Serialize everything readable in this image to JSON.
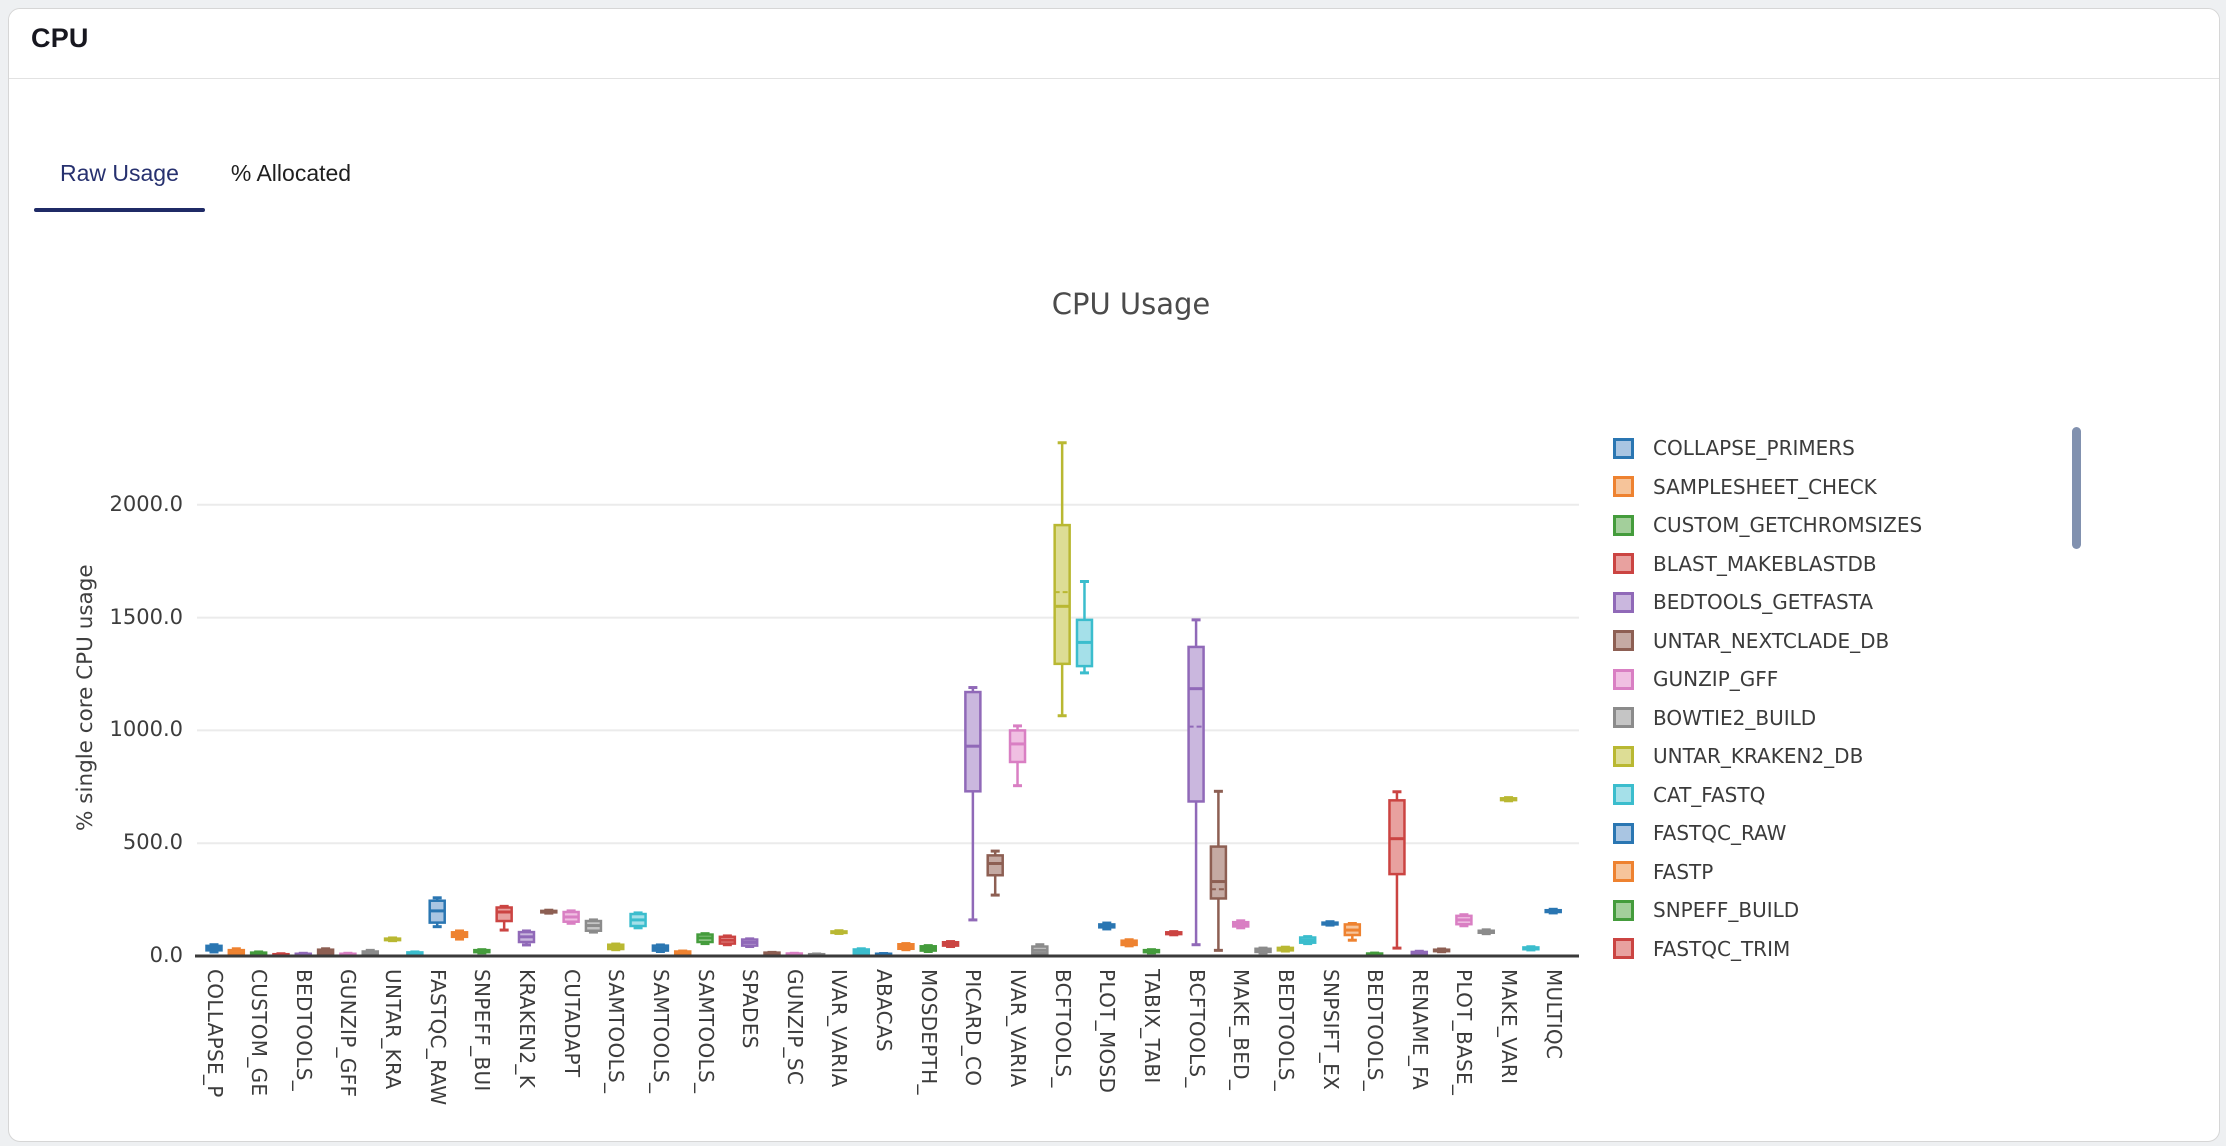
{
  "panel": {
    "title": "CPU"
  },
  "tabs": {
    "raw_label": "Raw Usage",
    "allocated_label": "% Allocated"
  },
  "colors": {
    "active_tab": "#27316f",
    "tab_underline": "#1f2a66",
    "scrollbar": "#8191af",
    "axis_line": "#3a3a3a",
    "gridline": "#ebebeb"
  },
  "chart_data": {
    "type": "boxplot",
    "title": "CPU Usage",
    "ylabel": "% single core CPU usage",
    "yticks": [
      0,
      500,
      1000,
      1500,
      2000
    ],
    "ytick_labels": [
      "0.0",
      "500.0",
      "1000.0",
      "1500.0",
      "2000.0"
    ],
    "ylim": [
      0,
      2350
    ],
    "grid": "horizontal",
    "legend_position": "right",
    "x_tick_labels": [
      "COLLAPSE_P",
      "CUSTOM_GE",
      "BEDTOOLS_",
      "GUNZIP_GFF",
      "UNTAR_KRA",
      "FASTQC_RAW",
      "SNPEFF_BUI",
      "KRAKEN2_K",
      "CUTADAPT",
      "SAMTOOLS_",
      "SAMTOOLS_",
      "SAMTOOLS_",
      "SPADES",
      "GUNZIP_SC",
      "IVAR_VARIA",
      "ABACAS",
      "MOSDEPTH_",
      "PICARD_CO",
      "IVAR_VARIA",
      "BCFTOOLS_",
      "PLOT_MOSD",
      "TABIX_TABI",
      "BCFTOOLS_",
      "MAKE_BED_",
      "BEDTOOLS_",
      "SNPSIFT_EX",
      "BEDTOOLS_",
      "RENAME_FA",
      "PLOT_BASE_",
      "MAKE_VARI",
      "MULTIQC"
    ],
    "palette": [
      [
        "#2a76b2",
        "#a9c5e2"
      ],
      [
        "#ee8230",
        "#f6c49a"
      ],
      [
        "#449c3c",
        "#a3cf9b"
      ],
      [
        "#cb4442",
        "#e8a19f"
      ],
      [
        "#9069b8",
        "#cab7de"
      ],
      [
        "#8d5f53",
        "#c5aaa3"
      ],
      [
        "#d97fc3",
        "#f0bfe2"
      ],
      [
        "#8b8b8b",
        "#c5c5c5"
      ],
      [
        "#b9b832",
        "#dddd95"
      ],
      [
        "#3bbdcd",
        "#a5e0e9"
      ]
    ],
    "boxes": [
      {
        "c": 0,
        "v": [
          18,
          25,
          35,
          45,
          50
        ]
      },
      {
        "c": 1,
        "v": [
          2,
          6,
          15,
          26,
          32
        ]
      },
      {
        "c": 2,
        "v": [
          2,
          5,
          10,
          15,
          18
        ]
      },
      {
        "c": 3,
        "v": [
          0,
          2,
          5,
          8,
          10
        ]
      },
      {
        "c": 4,
        "v": [
          1,
          3,
          6,
          10,
          12
        ]
      },
      {
        "c": 5,
        "v": [
          5,
          12,
          20,
          28,
          32
        ]
      },
      {
        "c": 6,
        "v": [
          0,
          3,
          7,
          10,
          12
        ]
      },
      {
        "c": 7,
        "v": [
          2,
          6,
          12,
          20,
          25
        ]
      },
      {
        "c": 8,
        "v": [
          68,
          71,
          74,
          77,
          80
        ]
      },
      {
        "c": 9,
        "v": [
          5,
          8,
          12,
          16,
          18
        ]
      },
      {
        "c": 0,
        "v": [
          130,
          148,
          200,
          245,
          258
        ]
      },
      {
        "c": 1,
        "v": [
          75,
          85,
          95,
          105,
          111
        ]
      },
      {
        "c": 2,
        "v": [
          14,
          17,
          21,
          26,
          28
        ]
      },
      {
        "c": 3,
        "v": [
          115,
          155,
          195,
          215,
          220
        ]
      },
      {
        "c": 4,
        "v": [
          49,
          62,
          85,
          106,
          111
        ]
      },
      {
        "c": 5,
        "v": [
          190,
          194,
          197,
          200,
          203
        ]
      },
      {
        "c": 6,
        "v": [
          145,
          152,
          173,
          195,
          200
        ]
      },
      {
        "c": 7,
        "v": [
          106,
          112,
          135,
          155,
          160
        ]
      },
      {
        "c": 8,
        "v": [
          28,
          31,
          40,
          50,
          53
        ]
      },
      {
        "c": 9,
        "v": [
          125,
          133,
          160,
          186,
          191
        ]
      },
      {
        "c": 0,
        "v": [
          20,
          24,
          35,
          46,
          49
        ]
      },
      {
        "c": 1,
        "v": [
          8,
          10,
          15,
          20,
          22
        ]
      },
      {
        "c": 2,
        "v": [
          55,
          62,
          80,
          95,
          99
        ]
      },
      {
        "c": 3,
        "v": [
          50,
          55,
          70,
          85,
          89
        ]
      },
      {
        "c": 4,
        "v": [
          42,
          46,
          60,
          73,
          76
        ]
      },
      {
        "c": 5,
        "v": [
          9,
          11,
          13,
          15,
          16
        ]
      },
      {
        "c": 6,
        "v": [
          6,
          7,
          9,
          11,
          12
        ]
      },
      {
        "c": 7,
        "v": [
          4,
          5,
          6,
          8,
          9
        ]
      },
      {
        "c": 8,
        "v": [
          100,
          103,
          106,
          109,
          112
        ]
      },
      {
        "c": 9,
        "v": [
          8,
          10,
          20,
          29,
          32
        ]
      },
      {
        "c": 0,
        "v": [
          5,
          6,
          8,
          10,
          11
        ]
      },
      {
        "c": 1,
        "v": [
          28,
          32,
          42,
          52,
          55
        ]
      },
      {
        "c": 2,
        "v": [
          20,
          24,
          35,
          43,
          46
        ]
      },
      {
        "c": 3,
        "v": [
          42,
          46,
          53,
          61,
          64
        ]
      },
      {
        "c": 4,
        "v": [
          160,
          730,
          930,
          1170,
          1190
        ]
      },
      {
        "c": 5,
        "v": [
          270,
          358,
          410,
          446,
          465
        ]
      },
      {
        "c": 6,
        "v": [
          755,
          860,
          940,
          1000,
          1020
        ]
      },
      {
        "c": 7,
        "v": [
          5,
          12,
          25,
          42,
          50
        ]
      },
      {
        "c": 8,
        "v": [
          1065,
          1295,
          1550,
          1910,
          2275
        ],
        "mean": 1613
      },
      {
        "c": 9,
        "v": [
          1255,
          1285,
          1390,
          1490,
          1660
        ]
      },
      {
        "c": 0,
        "v": [
          120,
          127,
          133,
          140,
          146
        ]
      },
      {
        "c": 1,
        "v": [
          45,
          49,
          58,
          68,
          72
        ]
      },
      {
        "c": 2,
        "v": [
          14,
          17,
          21,
          26,
          28
        ]
      },
      {
        "c": 3,
        "v": [
          94,
          97,
          101,
          105,
          108
        ]
      },
      {
        "c": 4,
        "v": [
          50,
          685,
          1185,
          1370,
          1490
        ],
        "mean": 1017
      },
      {
        "c": 5,
        "v": [
          25,
          255,
          330,
          485,
          730
        ],
        "mean": 296
      },
      {
        "c": 6,
        "v": [
          125,
          131,
          140,
          150,
          156
        ]
      },
      {
        "c": 7,
        "v": [
          14,
          18,
          25,
          32,
          35
        ]
      },
      {
        "c": 8,
        "v": [
          22,
          25,
          30,
          36,
          39
        ]
      },
      {
        "c": 9,
        "v": [
          55,
          59,
          70,
          82,
          86
        ]
      },
      {
        "c": 0,
        "v": [
          137,
          140,
          144,
          148,
          152
        ]
      },
      {
        "c": 1,
        "v": [
          70,
          93,
          115,
          140,
          144
        ]
      },
      {
        "c": 2,
        "v": [
          3,
          5,
          8,
          11,
          13
        ]
      },
      {
        "c": 3,
        "v": [
          35,
          363,
          520,
          690,
          728
        ]
      },
      {
        "c": 4,
        "v": [
          5,
          8,
          12,
          18,
          21
        ]
      },
      {
        "c": 5,
        "v": [
          19,
          22,
          25,
          28,
          31
        ]
      },
      {
        "c": 6,
        "v": [
          134,
          141,
          160,
          178,
          183
        ]
      },
      {
        "c": 7,
        "v": [
          99,
          103,
          108,
          112,
          116
        ]
      },
      {
        "c": 8,
        "v": [
          688,
          691,
          695,
          699,
          702
        ]
      },
      {
        "c": 9,
        "v": [
          27,
          30,
          34,
          38,
          41
        ]
      },
      {
        "c": 0,
        "v": [
          191,
          195,
          199,
          203,
          207
        ]
      }
    ],
    "legend": [
      {
        "label": "COLLAPSE_PRIMERS",
        "c": 0
      },
      {
        "label": "SAMPLESHEET_CHECK",
        "c": 1
      },
      {
        "label": "CUSTOM_GETCHROMSIZES",
        "c": 2
      },
      {
        "label": "BLAST_MAKEBLASTDB",
        "c": 3
      },
      {
        "label": "BEDTOOLS_GETFASTA",
        "c": 4
      },
      {
        "label": "UNTAR_NEXTCLADE_DB",
        "c": 5
      },
      {
        "label": "GUNZIP_GFF",
        "c": 6
      },
      {
        "label": "BOWTIE2_BUILD",
        "c": 7
      },
      {
        "label": "UNTAR_KRAKEN2_DB",
        "c": 8
      },
      {
        "label": "CAT_FASTQ",
        "c": 9
      },
      {
        "label": "FASTQC_RAW",
        "c": 0
      },
      {
        "label": "FASTP",
        "c": 1
      },
      {
        "label": "SNPEFF_BUILD",
        "c": 2
      },
      {
        "label": "FASTQC_TRIM",
        "c": 3
      }
    ]
  }
}
